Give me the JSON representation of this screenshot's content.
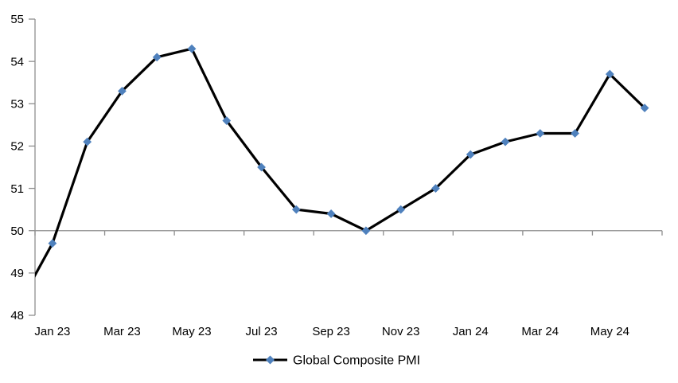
{
  "chart_data": {
    "type": "line",
    "title": "",
    "legend": {
      "label": "Global Composite PMI",
      "position": "bottom-center"
    },
    "categories": [
      "Jan 23",
      "Feb 23",
      "Mar 23",
      "Apr 23",
      "May 23",
      "Jun 23",
      "Jul 23",
      "Aug 23",
      "Sep 23",
      "Oct 23",
      "Nov 23",
      "Dec 23",
      "Jan 24",
      "Feb 24",
      "Mar 24",
      "Apr 24",
      "May 24",
      "Jun 24"
    ],
    "x_tick_labels": [
      "Jan 23",
      "Mar 23",
      "May 23",
      "Jul 23",
      "Sep 23",
      "Nov 23",
      "Jan 24",
      "Mar 24",
      "May 24"
    ],
    "series": [
      {
        "name": "Global Composite PMI",
        "values": [
          49.7,
          52.1,
          53.3,
          54.1,
          54.3,
          52.6,
          51.5,
          50.5,
          50.4,
          50.0,
          50.5,
          51.0,
          51.8,
          52.1,
          52.3,
          52.3,
          53.7,
          52.9
        ]
      }
    ],
    "partial_left_point": {
      "category": "Dec 22",
      "value": 48.2,
      "clipped_at_left_edge": true
    },
    "ylim": [
      48,
      55
    ],
    "y_ticks": [
      48,
      49,
      50,
      51,
      52,
      53,
      54,
      55
    ],
    "x_axis_crosses_at": 50,
    "x_tick_every_n_categories": 2,
    "grid": false,
    "marker": "diamond",
    "colors": {
      "line": "#000000",
      "marker": "#4f81bd",
      "axis": "#8e8e8e",
      "text": "#000000"
    }
  }
}
